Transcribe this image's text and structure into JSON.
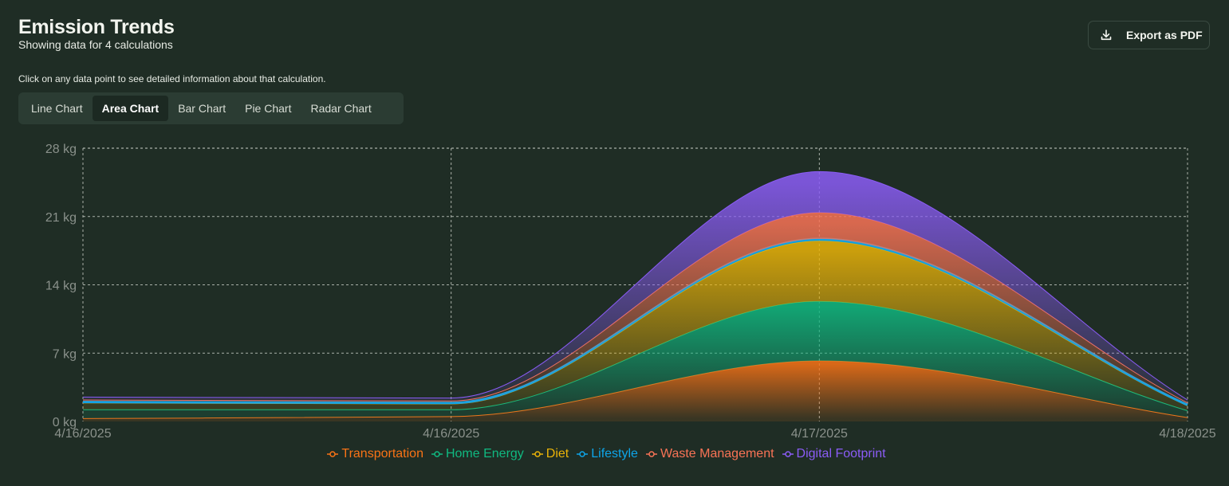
{
  "header": {
    "title": "Emission Trends",
    "subtitle": "Showing data for 4 calculations",
    "hint": "Click on any data point to see detailed information about that calculation.",
    "export_label": "Export as PDF"
  },
  "tabs": [
    {
      "label": "Line Chart",
      "active": false
    },
    {
      "label": "Area Chart",
      "active": true
    },
    {
      "label": "Bar Chart",
      "active": false
    },
    {
      "label": "Pie Chart",
      "active": false
    },
    {
      "label": "Radar Chart",
      "active": false
    }
  ],
  "chart_data": {
    "type": "area",
    "stacked": true,
    "categories": [
      "4/16/2025",
      "4/16/2025",
      "4/17/2025",
      "4/18/2025"
    ],
    "ylim": [
      0,
      28
    ],
    "yticks": [
      0,
      7,
      14,
      21,
      28
    ],
    "ytick_labels": [
      "0 kg",
      "7 kg",
      "14 kg",
      "21 kg",
      "28 kg"
    ],
    "grid": true,
    "legend_position": "bottom",
    "series": [
      {
        "name": "Transportation",
        "color": "#f97316",
        "values": [
          0.3,
          0.5,
          6.2,
          0.4
        ]
      },
      {
        "name": "Home Energy",
        "color": "#10b981",
        "values": [
          0.9,
          0.7,
          6.1,
          0.7
        ]
      },
      {
        "name": "Diet",
        "color": "#eab308",
        "values": [
          0.7,
          0.6,
          6.2,
          0.5
        ]
      },
      {
        "name": "Lifestyle",
        "color": "#0ea5e9",
        "values": [
          0.1,
          0.1,
          0.2,
          0.1
        ]
      },
      {
        "name": "Waste Management",
        "color": "#f97356",
        "values": [
          0.2,
          0.2,
          2.7,
          0.2
        ]
      },
      {
        "name": "Digital Footprint",
        "color": "#8b5cf6",
        "values": [
          0.3,
          0.3,
          4.2,
          0.3
        ]
      }
    ]
  }
}
